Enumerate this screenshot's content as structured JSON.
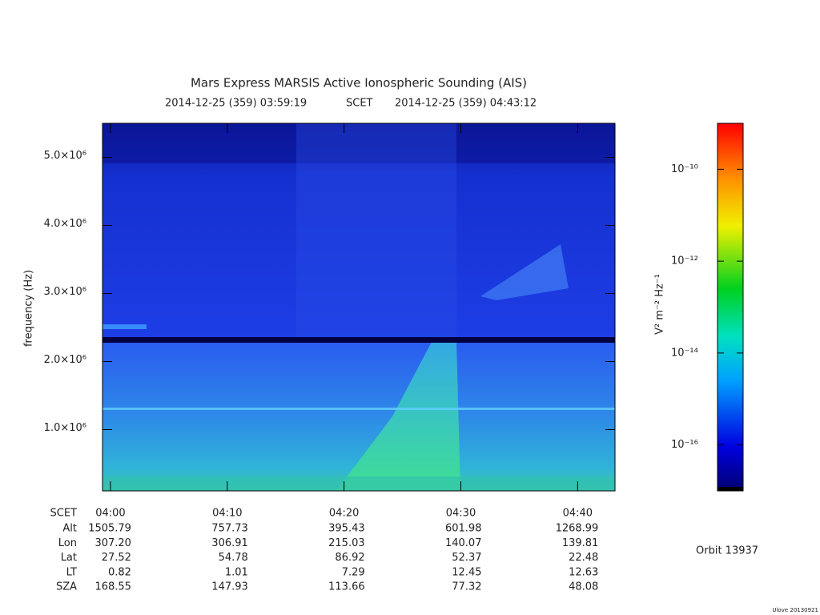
{
  "chart_data": {
    "type": "spectrogram",
    "title": "Mars Express MARSIS Active Ionospheric Sounding (AIS)",
    "subtitle": {
      "start": "2014-12-25 (359) 03:59:19",
      "scale": "SCET",
      "end": "2014-12-25 (359) 04:43:12"
    },
    "y_label": "frequency (Hz)",
    "xlim": [
      239.3167,
      283.2
    ],
    "xticks": [
      {
        "value": 240,
        "label": "04:00"
      },
      {
        "value": 250,
        "label": "04:10"
      },
      {
        "value": 260,
        "label": "04:20"
      },
      {
        "value": 270,
        "label": "04:30"
      },
      {
        "value": 280,
        "label": "04:40"
      }
    ],
    "ylim": [
      100000,
      5500000
    ],
    "yticks": [
      {
        "value": 1000000,
        "label": "1.0×10⁶"
      },
      {
        "value": 2000000,
        "label": "2.0×10⁶"
      },
      {
        "value": 3000000,
        "label": "3.0×10⁶"
      },
      {
        "value": 4000000,
        "label": "4.0×10⁶"
      },
      {
        "value": 5000000,
        "label": "5.0×10⁶"
      }
    ],
    "colorbar": {
      "label": "V² m⁻² Hz⁻¹",
      "log_scale": true,
      "lim": [
        1e-17,
        1e-09
      ],
      "ticks": [
        {
          "value": 1e-10,
          "label": "10⁻¹⁰"
        },
        {
          "value": 1e-12,
          "label": "10⁻¹²"
        },
        {
          "value": 1e-14,
          "label": "10⁻¹⁴"
        },
        {
          "value": 1e-16,
          "label": "10⁻¹⁶"
        }
      ]
    },
    "ephemeris": {
      "scet_label": "SCET",
      "rows": [
        {
          "label": "Alt",
          "values": [
            "1505.79",
            "757.73",
            "395.43",
            "601.98",
            "1268.99"
          ]
        },
        {
          "label": "Lon",
          "values": [
            "307.20",
            "306.91",
            "215.03",
            "140.07",
            "139.81"
          ]
        },
        {
          "label": "Lat",
          "values": [
            "27.52",
            "54.78",
            "86.92",
            "52.37",
            "22.48"
          ]
        },
        {
          "label": "LT",
          "values": [
            "0.82",
            "1.01",
            "7.29",
            "12.45",
            "12.63"
          ]
        },
        {
          "label": "SZA",
          "values": [
            "168.55",
            "147.93",
            "113.66",
            "77.32",
            "48.08"
          ]
        }
      ]
    },
    "orbit": "Orbit 13937",
    "footer": "Ulove 20130921"
  }
}
